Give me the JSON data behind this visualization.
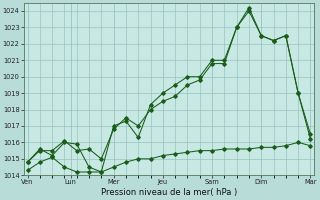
{
  "bg_color": "#b8dcd8",
  "plot_bg": "#c8e8e4",
  "grid_color": "#8cbcb8",
  "line_color": "#1a5c1a",
  "xlabel": "Pression niveau de la mer( hPa )",
  "ylim": [
    1014,
    1024.5
  ],
  "xlim": [
    -0.3,
    23.3
  ],
  "yticks": [
    1014,
    1015,
    1016,
    1017,
    1018,
    1019,
    1020,
    1021,
    1022,
    1023,
    1024
  ],
  "xtick_pos": [
    0,
    3.5,
    7,
    11,
    15,
    19,
    23
  ],
  "xtick_labels": [
    "Ven",
    "Lun",
    "Mer",
    "Jeu",
    "Sam",
    "Dim",
    "Mar"
  ],
  "s1_x": [
    0,
    1,
    2,
    3,
    4,
    5,
    6,
    7,
    8,
    9,
    10,
    11,
    12,
    13,
    14,
    15,
    16,
    17,
    18,
    19,
    20,
    21,
    22,
    23
  ],
  "s1_y": [
    1014.8,
    1015.6,
    1015.2,
    1016.0,
    1015.9,
    1014.5,
    1014.2,
    1017.0,
    1017.3,
    1016.3,
    1018.3,
    1019.0,
    1019.5,
    1020.0,
    1020.0,
    1021.0,
    1021.0,
    1023.0,
    1024.0,
    1022.5,
    1022.2,
    1022.5,
    1019.0,
    1016.2
  ],
  "s2_x": [
    0,
    1,
    2,
    3,
    4,
    5,
    6,
    7,
    8,
    9,
    10,
    11,
    12,
    13,
    14,
    15,
    16,
    17,
    18,
    19,
    20,
    21,
    22,
    23
  ],
  "s2_y": [
    1014.3,
    1014.8,
    1015.1,
    1014.5,
    1014.2,
    1014.2,
    1014.2,
    1014.5,
    1014.8,
    1015.0,
    1015.0,
    1015.2,
    1015.3,
    1015.4,
    1015.5,
    1015.5,
    1015.6,
    1015.6,
    1015.6,
    1015.7,
    1015.7,
    1015.8,
    1016.0,
    1015.8
  ],
  "s3_x": [
    0,
    1,
    2,
    3,
    4,
    5,
    6,
    7,
    8,
    9,
    10,
    11,
    12,
    13,
    14,
    15,
    16,
    17,
    18,
    19,
    20,
    21,
    22,
    23
  ],
  "s3_y": [
    1014.8,
    1015.5,
    1015.5,
    1016.1,
    1015.5,
    1015.6,
    1015.0,
    1016.8,
    1017.5,
    1017.0,
    1018.0,
    1018.5,
    1018.8,
    1019.5,
    1019.8,
    1020.8,
    1020.8,
    1023.0,
    1024.2,
    1022.5,
    1022.2,
    1022.5,
    1019.0,
    1016.5
  ]
}
